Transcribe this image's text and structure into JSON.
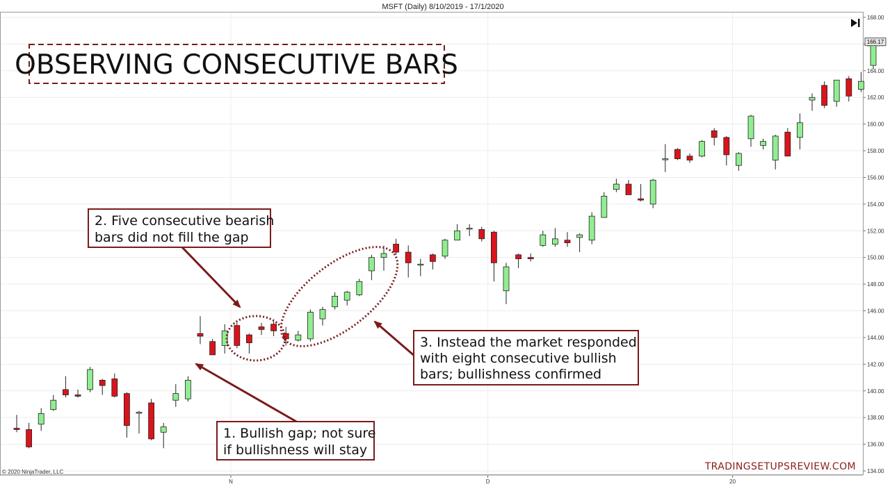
{
  "chart_data": {
    "type": "candlestick",
    "title": "MSFT (Daily)  8/10/2019 - 17/1/2020",
    "ylim": [
      134,
      168
    ],
    "yticks": [
      "134.00",
      "136.00",
      "138.00",
      "140.00",
      "142.00",
      "144.00",
      "146.00",
      "148.00",
      "150.00",
      "152.00",
      "154.00",
      "156.00",
      "158.00",
      "160.00",
      "162.00",
      "164.00",
      "166.00",
      "168.00"
    ],
    "xticks": [
      {
        "label": "N",
        "index": 18
      },
      {
        "label": "D",
        "index": 39
      },
      {
        "label": "20",
        "index": 59
      }
    ],
    "last_price": "166.17",
    "copyright": "© 2020 NinjaTrader, LLC",
    "bars": [
      {
        "o": 137.2,
        "h": 138.2,
        "l": 136.9,
        "c": 137.1
      },
      {
        "o": 137.1,
        "h": 137.6,
        "l": 135.7,
        "c": 135.8
      },
      {
        "o": 137.5,
        "h": 138.7,
        "l": 137.0,
        "c": 138.3
      },
      {
        "o": 138.6,
        "h": 139.7,
        "l": 138.5,
        "c": 139.3
      },
      {
        "o": 140.1,
        "h": 141.1,
        "l": 139.5,
        "c": 139.7
      },
      {
        "o": 139.7,
        "h": 140.1,
        "l": 139.5,
        "c": 139.6
      },
      {
        "o": 140.1,
        "h": 141.8,
        "l": 139.9,
        "c": 141.6
      },
      {
        "o": 140.8,
        "h": 140.9,
        "l": 139.7,
        "c": 140.4
      },
      {
        "o": 140.9,
        "h": 141.3,
        "l": 139.5,
        "c": 139.6
      },
      {
        "o": 139.8,
        "h": 139.9,
        "l": 136.5,
        "c": 137.4
      },
      {
        "o": 138.4,
        "h": 138.5,
        "l": 136.8,
        "c": 138.4
      },
      {
        "o": 139.1,
        "h": 139.4,
        "l": 136.3,
        "c": 136.4
      },
      {
        "o": 136.9,
        "h": 137.6,
        "l": 135.7,
        "c": 137.3
      },
      {
        "o": 139.3,
        "h": 140.5,
        "l": 138.8,
        "c": 139.8
      },
      {
        "o": 139.4,
        "h": 141.1,
        "l": 139.2,
        "c": 140.8
      },
      {
        "o": 144.3,
        "h": 145.6,
        "l": 143.5,
        "c": 144.1
      },
      {
        "o": 143.7,
        "h": 143.9,
        "l": 142.7,
        "c": 142.7
      },
      {
        "o": 143.4,
        "h": 145.0,
        "l": 142.8,
        "c": 144.5
      },
      {
        "o": 144.9,
        "h": 145.1,
        "l": 143.2,
        "c": 143.4
      },
      {
        "o": 144.2,
        "h": 144.3,
        "l": 142.8,
        "c": 143.6
      },
      {
        "o": 144.8,
        "h": 145.1,
        "l": 144.2,
        "c": 144.6
      },
      {
        "o": 145.0,
        "h": 145.2,
        "l": 144.1,
        "c": 144.5
      },
      {
        "o": 144.3,
        "h": 144.8,
        "l": 143.4,
        "c": 143.9
      },
      {
        "o": 143.8,
        "h": 144.5,
        "l": 143.7,
        "c": 144.2
      },
      {
        "o": 143.9,
        "h": 146.1,
        "l": 143.7,
        "c": 145.9
      },
      {
        "o": 145.4,
        "h": 146.3,
        "l": 144.9,
        "c": 146.1
      },
      {
        "o": 146.3,
        "h": 147.4,
        "l": 146.1,
        "c": 147.1
      },
      {
        "o": 146.8,
        "h": 147.5,
        "l": 146.4,
        "c": 147.4
      },
      {
        "o": 147.2,
        "h": 148.4,
        "l": 147.1,
        "c": 148.2
      },
      {
        "o": 149.0,
        "h": 150.2,
        "l": 148.3,
        "c": 150.0
      },
      {
        "o": 150.0,
        "h": 150.9,
        "l": 149.0,
        "c": 150.3
      },
      {
        "o": 151.0,
        "h": 151.4,
        "l": 150.2,
        "c": 150.4
      },
      {
        "o": 150.4,
        "h": 150.9,
        "l": 148.5,
        "c": 149.6
      },
      {
        "o": 149.5,
        "h": 149.9,
        "l": 148.6,
        "c": 149.5
      },
      {
        "o": 150.2,
        "h": 150.3,
        "l": 149.1,
        "c": 149.7
      },
      {
        "o": 150.1,
        "h": 151.4,
        "l": 149.9,
        "c": 151.3
      },
      {
        "o": 151.3,
        "h": 152.5,
        "l": 151.3,
        "c": 152.0
      },
      {
        "o": 152.2,
        "h": 152.5,
        "l": 151.6,
        "c": 152.2
      },
      {
        "o": 152.1,
        "h": 152.3,
        "l": 151.2,
        "c": 151.4
      },
      {
        "o": 151.9,
        "h": 152.0,
        "l": 148.2,
        "c": 149.6
      },
      {
        "o": 147.5,
        "h": 149.6,
        "l": 146.5,
        "c": 149.3
      },
      {
        "o": 150.2,
        "h": 150.3,
        "l": 149.2,
        "c": 149.9
      },
      {
        "o": 150.0,
        "h": 150.3,
        "l": 149.7,
        "c": 149.9
      },
      {
        "o": 150.9,
        "h": 152.0,
        "l": 150.8,
        "c": 151.7
      },
      {
        "o": 151.0,
        "h": 152.2,
        "l": 150.8,
        "c": 151.4
      },
      {
        "o": 151.3,
        "h": 151.9,
        "l": 150.8,
        "c": 151.1
      },
      {
        "o": 151.5,
        "h": 151.8,
        "l": 150.4,
        "c": 151.7
      },
      {
        "o": 151.3,
        "h": 153.4,
        "l": 151.0,
        "c": 153.1
      },
      {
        "o": 153.0,
        "h": 154.9,
        "l": 153.0,
        "c": 154.6
      },
      {
        "o": 155.1,
        "h": 155.9,
        "l": 154.9,
        "c": 155.5
      },
      {
        "o": 155.5,
        "h": 155.8,
        "l": 154.7,
        "c": 154.7
      },
      {
        "o": 154.4,
        "h": 155.5,
        "l": 154.2,
        "c": 154.3
      },
      {
        "o": 154.0,
        "h": 155.9,
        "l": 153.7,
        "c": 155.8
      },
      {
        "o": 157.4,
        "h": 158.5,
        "l": 156.4,
        "c": 157.4
      },
      {
        "o": 158.1,
        "h": 158.2,
        "l": 157.3,
        "c": 157.4
      },
      {
        "o": 157.6,
        "h": 157.8,
        "l": 157.1,
        "c": 157.3
      },
      {
        "o": 157.6,
        "h": 158.8,
        "l": 157.5,
        "c": 158.7
      },
      {
        "o": 159.5,
        "h": 159.7,
        "l": 158.4,
        "c": 159.0
      },
      {
        "o": 159.0,
        "h": 159.1,
        "l": 156.9,
        "c": 157.7
      },
      {
        "o": 156.9,
        "h": 157.9,
        "l": 156.5,
        "c": 157.8
      },
      {
        "o": 158.9,
        "h": 160.7,
        "l": 158.3,
        "c": 160.6
      },
      {
        "o": 158.4,
        "h": 158.9,
        "l": 158.1,
        "c": 158.7
      },
      {
        "o": 157.3,
        "h": 159.2,
        "l": 156.6,
        "c": 159.1
      },
      {
        "o": 159.4,
        "h": 159.7,
        "l": 157.6,
        "c": 157.6
      },
      {
        "o": 159.0,
        "h": 160.8,
        "l": 158.1,
        "c": 160.1
      },
      {
        "o": 161.8,
        "h": 162.3,
        "l": 161.0,
        "c": 162.0
      },
      {
        "o": 162.9,
        "h": 163.2,
        "l": 161.2,
        "c": 161.4
      },
      {
        "o": 161.7,
        "h": 163.3,
        "l": 161.3,
        "c": 163.3
      },
      {
        "o": 163.4,
        "h": 163.6,
        "l": 161.7,
        "c": 162.1
      },
      {
        "o": 162.6,
        "h": 163.9,
        "l": 162.4,
        "c": 163.2
      },
      {
        "o": 164.4,
        "h": 166.3,
        "l": 164.1,
        "c": 166.2
      }
    ]
  },
  "annotations": {
    "title": "OBSERVING CONSECUTIVE BARS",
    "note1": [
      "1. Bullish gap; not sure",
      "if bullishness will stay"
    ],
    "note2": [
      "2. Five consecutive bearish",
      "bars did not fill the gap"
    ],
    "note3": [
      "3. Instead the market responded",
      "with eight consecutive bullish",
      "bars; bullishness confirmed"
    ],
    "brand": "TRADINGSETUPSREVIEW.COM"
  },
  "colors": {
    "bull": "#90ee90",
    "bear": "#d9141b",
    "frame": "#7a1a1a",
    "text": "#111111"
  },
  "icons": {
    "scroll": "skip-to-end-icon"
  }
}
